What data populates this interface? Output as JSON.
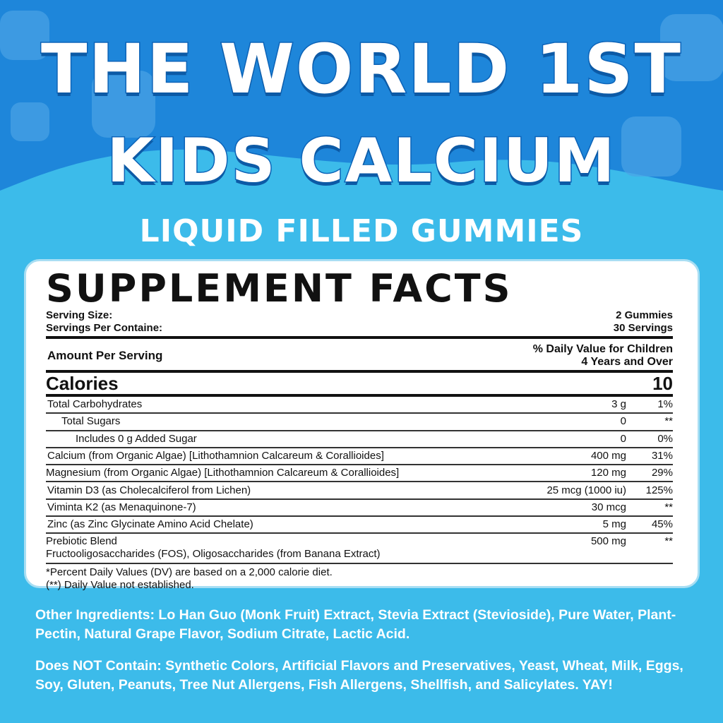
{
  "header": {
    "line1": "THE WORLD 1ST",
    "line2": "KIDS CALCIUM",
    "line3": "LIQUID FILLED GUMMIES"
  },
  "colors": {
    "top_blue": "#1e86da",
    "light_blue": "#3cbbea",
    "outline_blue": "#0c63b8"
  },
  "facts": {
    "title": "SUPPLEMENT FACTS",
    "serving_size_label": "Serving Size:",
    "serving_size_value": "2 Gummies",
    "servings_label": "Servings Per Containe:",
    "servings_value": "30 Servings",
    "amount_label": "Amount Per Serving",
    "dv_label_1": "% Daily Value for Children",
    "dv_label_2": "4 Years and Over",
    "calories_label": "Calories",
    "calories_value": "10",
    "rows": [
      {
        "name": "Total Carbohydrates",
        "amount": "3 g",
        "dv": "1%"
      },
      {
        "name": "Total Sugars",
        "amount": "0",
        "dv": "**"
      },
      {
        "name": "Includes 0 g Added Sugar",
        "amount": "0",
        "dv": "0%"
      },
      {
        "name": "Calcium (from Organic Algae) [Lithothamnion Calcareum & Corallioides]",
        "amount": "400 mg",
        "dv": "31%"
      },
      {
        "name": "Magnesium (from Organic Algae) [Lithothamnion Calcareum & Corallioides]",
        "amount": "120 mg",
        "dv": "29%"
      },
      {
        "name": "Vitamin D3 (as Cholecalciferol from Lichen)",
        "amount": "25 mcg (1000 iu)",
        "dv": "125%"
      },
      {
        "name": "Viminta K2 (as Menaquinone-7)",
        "amount": "30 mcg",
        "dv": "**"
      },
      {
        "name": "Zinc (as Zinc Glycinate Amino Acid Chelate)",
        "amount": "5 mg",
        "dv": "45%"
      }
    ],
    "prebiotic": {
      "name": "Prebiotic Blend",
      "detail": "Fructooligosaccharides (FOS), Oligosaccharides (from Banana Extract)",
      "amount": "500 mg",
      "dv": "**"
    },
    "footnote1": "*Percent Daily Values (DV) are based on a 2,000 calorie diet.",
    "footnote2": "(**) Daily Value not established."
  },
  "other_ingredients": "Other Ingredients: Lo Han Guo (Monk Fruit) Extract, Stevia Extract (Stevioside), Pure Water, Plant-Pectin, Natural Grape Flavor, Sodium Citrate, Lactic Acid.",
  "does_not_contain": "Does NOT Contain: Synthetic Colors, Artificial Flavors and Preservatives, Yeast, Wheat, Milk, Eggs, Soy, Gluten, Peanuts, Tree Nut Allergens, Fish Allergens, Shellfish, and Salicylates. YAY!"
}
